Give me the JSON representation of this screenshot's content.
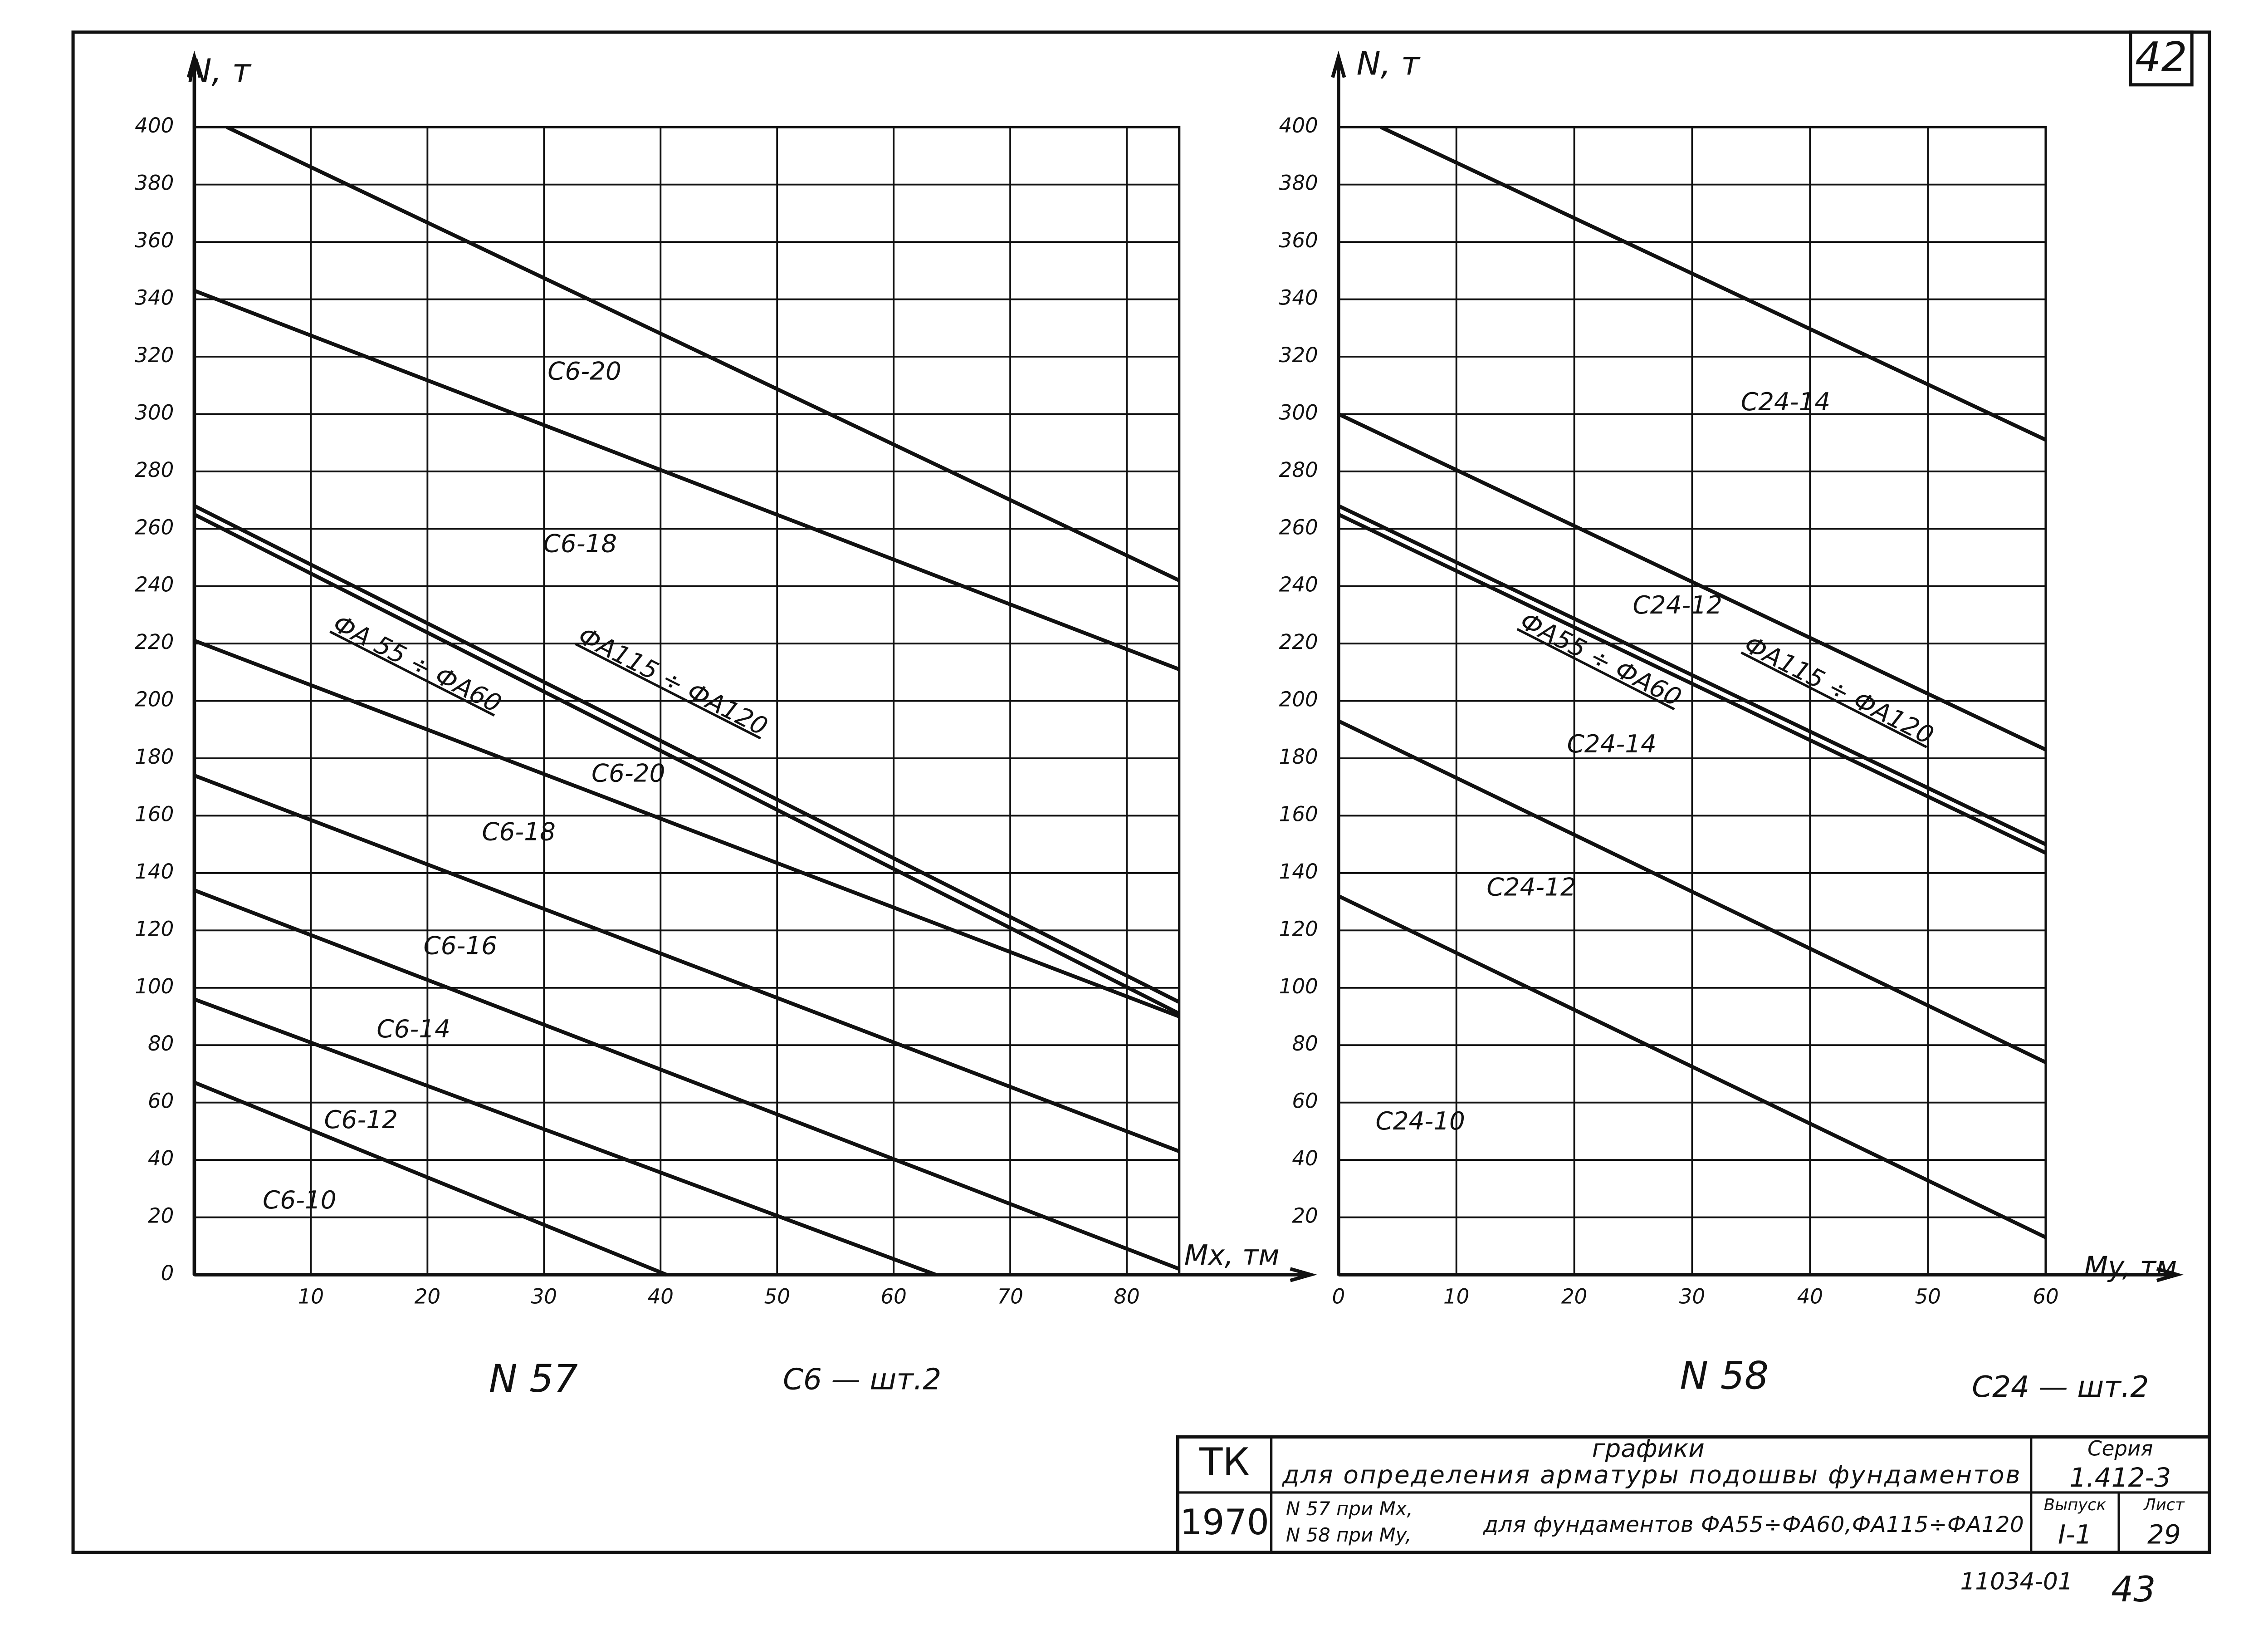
{
  "chart_data": [
    {
      "type": "line",
      "color": "#111111",
      "grid": true,
      "x_label": "Mx, тм",
      "y_label": "N, т",
      "xlim": [
        0,
        84.5
      ],
      "ylim": [
        0,
        400
      ],
      "xticks": [
        10,
        20,
        30,
        40,
        50,
        60,
        70,
        80
      ],
      "yticks": [
        0,
        20,
        40,
        60,
        80,
        100,
        120,
        140,
        160,
        180,
        200,
        220,
        240,
        260,
        280,
        300,
        320,
        340,
        360,
        380,
        400
      ],
      "series": [
        {
          "name": "С6-20",
          "x": [
            2.8,
            84.5
          ],
          "values": [
            400,
            242
          ]
        },
        {
          "name": "С6-18",
          "x": [
            0,
            84.5
          ],
          "values": [
            343,
            211
          ]
        },
        {
          "x": [
            0,
            84.5
          ],
          "values": [
            268,
            95
          ]
        },
        {
          "x": [
            0,
            84.5
          ],
          "values": [
            265,
            91
          ]
        },
        {
          "name": "С6-20",
          "x": [
            0,
            84.5
          ],
          "values": [
            221,
            90
          ]
        },
        {
          "name": "С6-18",
          "x": [
            0,
            84.5
          ],
          "values": [
            174,
            43
          ]
        },
        {
          "name": "С6-16",
          "x": [
            0,
            84.5
          ],
          "values": [
            134,
            2
          ]
        },
        {
          "name": "С6-14",
          "x": [
            0,
            63.6
          ],
          "values": [
            96,
            0
          ]
        },
        {
          "name": "С6-12",
          "x": [
            0,
            40.5
          ],
          "values": [
            67,
            0
          ]
        }
      ],
      "annotations": [
        "С6-10",
        "ФА 55 ÷ ФА60",
        "ФА115 ÷ ФА120"
      ]
    },
    {
      "type": "line",
      "color": "#111111",
      "grid": true,
      "x_label": "My, тм",
      "y_label": "N, т",
      "xlim": [
        0,
        60
      ],
      "ylim": [
        0,
        400
      ],
      "xticks": [
        0,
        10,
        20,
        30,
        40,
        50,
        60
      ],
      "yticks": [
        20,
        40,
        60,
        80,
        100,
        120,
        140,
        160,
        180,
        200,
        220,
        240,
        260,
        280,
        300,
        320,
        340,
        360,
        380,
        400
      ],
      "series": [
        {
          "name": "С24-14",
          "x": [
            3.6,
            60
          ],
          "values": [
            400,
            291
          ]
        },
        {
          "name": "С24-12",
          "x": [
            0,
            60
          ],
          "values": [
            300,
            183
          ]
        },
        {
          "x": [
            0,
            60
          ],
          "values": [
            268,
            150
          ]
        },
        {
          "x": [
            0,
            60
          ],
          "values": [
            265,
            147
          ]
        },
        {
          "name": "С24-14",
          "x": [
            0,
            60
          ],
          "values": [
            193,
            74
          ]
        },
        {
          "name": "С24-12",
          "x": [
            0,
            60
          ],
          "values": [
            132,
            13
          ]
        }
      ],
      "annotations": [
        "С24-10",
        "ФА55 ÷ ФА60",
        "ФА115 ÷ ФА120"
      ]
    }
  ],
  "sheet": {
    "page_number": "42",
    "left_caption": {
      "number": "N 57",
      "note": "С6 — шт.2"
    },
    "right_caption": {
      "number": "N 58",
      "note": "С24 — шт.2"
    },
    "title_block": {
      "org": "ТК",
      "year": "1970",
      "title_1": "графики",
      "title_2": "для определения арматуры подошвы фундаментов",
      "line_1": "N 57 при Mx,",
      "line_2": "N 58 при My,",
      "title_3": "для фундаментов ФА55÷ФА60,ФА115÷ФА120",
      "series_label": "Серия",
      "series": "1.412-3",
      "issue_label": "Выпуск",
      "issue": "I-1",
      "sheet_label": "Лист",
      "sheet": "29"
    },
    "stamp": "11034-01",
    "stamp_number": "43"
  }
}
